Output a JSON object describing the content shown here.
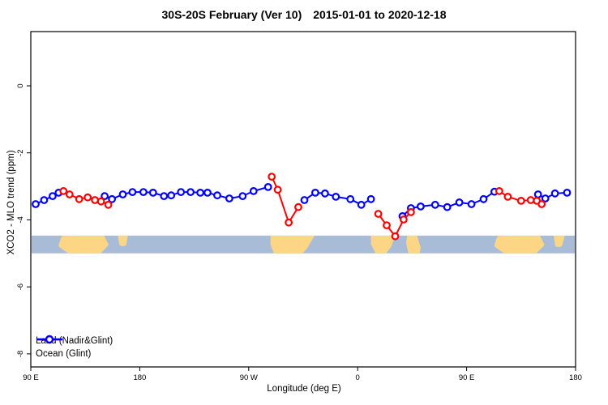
{
  "title": {
    "left": "30S-20S February (Ver 10)",
    "right": "2015-01-01 to 2020-12-18"
  },
  "chart_data": {
    "type": "line",
    "title": "30S-20S February (Ver 10)  2015-01-01 to 2020-12-18",
    "xlabel": "Longitude (deg E)",
    "ylabel": "XCO2 - MLO trend (ppm)",
    "xlim": [
      90,
      540
    ],
    "ylim": [
      -8.39,
      1.62
    ],
    "grid": false,
    "legend_position": "bottom-left",
    "x_ticks": [
      {
        "value": 90,
        "label": "90 E"
      },
      {
        "value": 180,
        "label": "180"
      },
      {
        "value": 270,
        "label": "90 W"
      },
      {
        "value": 360,
        "label": "0"
      },
      {
        "value": 450,
        "label": "90 E"
      },
      {
        "value": 540,
        "label": "180"
      }
    ],
    "y_ticks": [
      {
        "value": 0,
        "label": "0"
      },
      {
        "value": -2,
        "label": "-2"
      },
      {
        "value": -4,
        "label": "-4"
      },
      {
        "value": -6,
        "label": "-6"
      },
      {
        "value": -8,
        "label": "-8"
      }
    ],
    "series": [
      {
        "name": "Ocean (Glint)",
        "color": "#0000ff",
        "marker": "open-circle",
        "segments": [
          [
            [
              94,
              -3.53
            ],
            [
              101,
              -3.41
            ],
            [
              108,
              -3.29
            ],
            [
              113,
              -3.19
            ]
          ],
          [
            [
              151,
              -3.29
            ],
            [
              157,
              -3.38
            ],
            [
              166,
              -3.24
            ],
            [
              174,
              -3.17
            ],
            [
              183,
              -3.17
            ],
            [
              191,
              -3.19
            ],
            [
              200,
              -3.29
            ],
            [
              206,
              -3.27
            ],
            [
              214,
              -3.17
            ],
            [
              222,
              -3.17
            ],
            [
              230,
              -3.19
            ],
            [
              236,
              -3.19
            ],
            [
              244,
              -3.27
            ],
            [
              254,
              -3.36
            ],
            [
              265,
              -3.29
            ],
            [
              274,
              -3.14
            ],
            [
              286,
              -3.02
            ]
          ],
          [
            [
              316,
              -3.41
            ],
            [
              325,
              -3.19
            ],
            [
              333,
              -3.21
            ],
            [
              342,
              -3.31
            ],
            [
              354,
              -3.38
            ],
            [
              363,
              -3.55
            ],
            [
              371,
              -3.38
            ]
          ],
          [
            [
              397,
              -3.89
            ],
            [
              404,
              -3.65
            ],
            [
              412,
              -3.6
            ],
            [
              424,
              -3.55
            ],
            [
              434,
              -3.62
            ],
            [
              444,
              -3.48
            ],
            [
              454,
              -3.53
            ],
            [
              464,
              -3.38
            ],
            [
              473,
              -3.16
            ]
          ],
          [
            [
              509,
              -3.24
            ],
            [
              515,
              -3.36
            ],
            [
              523,
              -3.21
            ],
            [
              533,
              -3.19
            ]
          ]
        ]
      },
      {
        "name": "Land (Nadir&Glint)",
        "color": "#ff0000",
        "marker": "open-circle",
        "segments": [
          [
            [
              117,
              -3.14
            ],
            [
              122,
              -3.24
            ],
            [
              130,
              -3.38
            ],
            [
              137,
              -3.33
            ],
            [
              143,
              -3.41
            ],
            [
              148,
              -3.45
            ],
            [
              154,
              -3.55
            ]
          ],
          [
            [
              289,
              -2.71
            ],
            [
              294,
              -3.1
            ],
            [
              303,
              -4.08
            ],
            [
              311,
              -3.62
            ]
          ],
          [
            [
              377,
              -3.82
            ],
            [
              384,
              -4.16
            ],
            [
              391,
              -4.49
            ],
            [
              398,
              -3.99
            ],
            [
              404,
              -3.77
            ]
          ],
          [
            [
              477,
              -3.14
            ],
            [
              484,
              -3.31
            ],
            [
              495,
              -3.43
            ],
            [
              503,
              -3.41
            ],
            [
              508,
              -3.43
            ],
            [
              512,
              -3.53
            ]
          ]
        ]
      }
    ],
    "legend": [
      "Land (Nadir&Glint)",
      "Ocean (Glint)"
    ],
    "map_band": {
      "description": "land/ocean strip for latitude band 30S-20S",
      "ppm_top": -4.47,
      "ppm_bottom": -5.0,
      "ocean_color": "#a8bcd8",
      "land_color": "#fcd685",
      "land_polygons": [
        {
          "name": "australia",
          "points": [
            [
              117,
              0.15
            ],
            [
              149,
              0.1
            ],
            [
              152,
              0.5
            ],
            [
              146,
              0.92
            ],
            [
              123,
              0.93
            ],
            [
              115,
              0.55
            ]
          ]
        },
        {
          "name": "new-caledonia",
          "points": [
            [
              164,
              0.0
            ],
            [
              168,
              0.0
            ],
            [
              167,
              0.45
            ],
            [
              165,
              0.45
            ]
          ]
        },
        {
          "name": "south-america",
          "points": [
            [
              290,
              0.0
            ],
            [
              322,
              0.0
            ],
            [
              317,
              0.6
            ],
            [
              312,
              1.0
            ],
            [
              293,
              1.0
            ],
            [
              290,
              0.5
            ]
          ]
        },
        {
          "name": "africa",
          "points": [
            [
              373,
              0.0
            ],
            [
              389,
              0.0
            ],
            [
              386,
              0.55
            ],
            [
              381,
              1.0
            ],
            [
              377,
              1.0
            ],
            [
              373,
              0.45
            ]
          ]
        },
        {
          "name": "madagascar",
          "points": [
            [
              403,
              0.0
            ],
            [
              407,
              0.0
            ],
            [
              410,
              0.7
            ],
            [
              409,
              1.0
            ],
            [
              404,
              1.0
            ],
            [
              402,
              0.4
            ]
          ]
        },
        {
          "name": "australia-2",
          "points": [
            [
              477,
              0.15
            ],
            [
              509,
              0.1
            ],
            [
              512,
              0.5
            ],
            [
              506,
              0.92
            ],
            [
              483,
              0.93
            ],
            [
              475,
              0.55
            ]
          ]
        },
        {
          "name": "new-caledonia-2",
          "points": [
            [
              524,
              0.0
            ],
            [
              529,
              0.0
            ],
            [
              527,
              0.5
            ],
            [
              525,
              0.5
            ]
          ]
        }
      ]
    }
  }
}
